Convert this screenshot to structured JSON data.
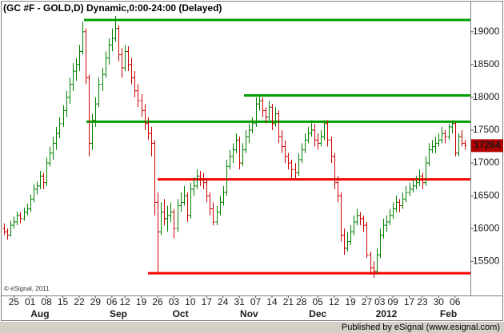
{
  "chart_data": {
    "type": "ohlc",
    "title": "(GC #F - GOLD,D) Dynamic,0:00-24:00 (Delayed)",
    "copyright": "© eSignal, 2011",
    "footer": "Published by eSignal (www.esignal.com)",
    "ylim": [
      14980,
      19460
    ],
    "yticks": [
      15500,
      16000,
      16500,
      17000,
      17500,
      18000,
      18500,
      19000
    ],
    "up_color": "#008000",
    "down_color": "#cc0000",
    "levels": [
      {
        "value": 19180,
        "color": "#00a000"
      },
      {
        "value": 18030,
        "color": "#00a000"
      },
      {
        "value": 17630,
        "color": "#00a000"
      },
      {
        "value": 16750,
        "color": "#ff0000"
      },
      {
        "value": 15320,
        "color": "#ff0000"
      }
    ],
    "categories": [
      null,
      null,
      null,
      "25",
      null,
      null,
      null,
      null,
      "01",
      null,
      null,
      null,
      null,
      "08",
      null,
      null,
      null,
      null,
      "15",
      null,
      null,
      null,
      null,
      "22",
      null,
      null,
      null,
      null,
      "29",
      null,
      null,
      null,
      null,
      "06",
      null,
      null,
      null,
      "12",
      null,
      null,
      null,
      null,
      "19",
      null,
      null,
      null,
      null,
      "26",
      null,
      null,
      null,
      null,
      "03",
      null,
      null,
      null,
      null,
      "10",
      null,
      null,
      null,
      null,
      "17",
      null,
      null,
      null,
      null,
      "24",
      null,
      null,
      null,
      null,
      "31",
      null,
      null,
      null,
      null,
      "07",
      null,
      null,
      null,
      null,
      "14",
      null,
      null,
      null,
      null,
      "21",
      null,
      null,
      null,
      "28",
      null,
      null,
      null,
      null,
      "05",
      null,
      null,
      null,
      null,
      "12",
      null,
      null,
      null,
      null,
      "19",
      null,
      null,
      null,
      null,
      "27",
      null,
      null,
      null,
      "03",
      null,
      null,
      null,
      "09",
      null,
      null,
      null,
      null,
      "17",
      null,
      null,
      null,
      "23",
      null,
      null,
      null,
      null,
      "30",
      null,
      null,
      null,
      null,
      "06",
      null,
      null,
      null
    ],
    "months": [
      null,
      null,
      null,
      null,
      null,
      null,
      null,
      null,
      null,
      null,
      null,
      "Aug",
      null,
      null,
      null,
      null,
      null,
      null,
      null,
      null,
      null,
      null,
      null,
      null,
      null,
      null,
      null,
      null,
      null,
      null,
      null,
      null,
      null,
      null,
      null,
      "Sep",
      null,
      null,
      null,
      null,
      null,
      null,
      null,
      null,
      null,
      null,
      null,
      null,
      null,
      null,
      null,
      null,
      null,
      null,
      "Oct",
      null,
      null,
      null,
      null,
      null,
      null,
      null,
      null,
      null,
      null,
      null,
      null,
      null,
      null,
      null,
      null,
      null,
      null,
      null,
      null,
      "Nov",
      null,
      null,
      null,
      null,
      null,
      null,
      null,
      null,
      null,
      null,
      null,
      null,
      null,
      null,
      null,
      null,
      null,
      null,
      null,
      null,
      "Dec",
      null,
      null,
      null,
      null,
      null,
      null,
      null,
      null,
      null,
      null,
      null,
      null,
      null,
      null,
      null,
      null,
      null,
      null,
      null,
      null,
      "2012",
      null,
      null,
      null,
      null,
      null,
      null,
      null,
      null,
      null,
      null,
      null,
      null,
      null,
      null,
      null,
      null,
      null,
      null,
      "Feb",
      null,
      null,
      null,
      null,
      null
    ],
    "bars": [
      [
        16000,
        16080,
        15900,
        15950
      ],
      [
        15950,
        16000,
        15830,
        15900
      ],
      [
        15900,
        16120,
        15880,
        16050
      ],
      [
        16050,
        16180,
        16000,
        16100
      ],
      [
        16100,
        16260,
        16050,
        16200
      ],
      [
        16200,
        16250,
        16080,
        16150
      ],
      [
        16150,
        16320,
        16120,
        16250
      ],
      [
        16250,
        16380,
        16200,
        16300
      ],
      [
        16300,
        16520,
        16250,
        16450
      ],
      [
        16450,
        16680,
        16400,
        16600
      ],
      [
        16600,
        16720,
        16520,
        16650
      ],
      [
        16650,
        16880,
        16600,
        16800
      ],
      [
        16800,
        16850,
        16600,
        16700
      ],
      [
        16700,
        17080,
        16650,
        17000
      ],
      [
        17000,
        17250,
        16950,
        17150
      ],
      [
        17150,
        17400,
        17050,
        17300
      ],
      [
        17300,
        17550,
        17200,
        17450
      ],
      [
        17450,
        17700,
        17380,
        17600
      ],
      [
        17600,
        17880,
        17550,
        17800
      ],
      [
        17800,
        18100,
        17700,
        18000
      ],
      [
        18000,
        18300,
        17900,
        18200
      ],
      [
        18200,
        18520,
        18100,
        18400
      ],
      [
        18400,
        18600,
        18250,
        18500
      ],
      [
        18500,
        18800,
        18400,
        18700
      ],
      [
        18700,
        19150,
        18650,
        19000
      ],
      [
        19000,
        19050,
        18200,
        18300
      ],
      [
        18300,
        18350,
        17100,
        17300
      ],
      [
        17300,
        17750,
        17200,
        17650
      ],
      [
        17650,
        18000,
        17550,
        17900
      ],
      [
        17900,
        18300,
        17850,
        18200
      ],
      [
        18200,
        18450,
        18100,
        18350
      ],
      [
        18350,
        18700,
        18300,
        18600
      ],
      [
        18600,
        18900,
        18500,
        18800
      ],
      [
        18800,
        19050,
        18700,
        18900
      ],
      [
        18900,
        19240,
        18850,
        19050
      ],
      [
        19050,
        19100,
        18550,
        18650
      ],
      [
        18650,
        18750,
        18300,
        18450
      ],
      [
        18450,
        18800,
        18400,
        18700
      ],
      [
        18700,
        18780,
        18400,
        18500
      ],
      [
        18500,
        18600,
        18200,
        18300
      ],
      [
        18300,
        18400,
        18000,
        18100
      ],
      [
        18100,
        18200,
        17850,
        17950
      ],
      [
        17950,
        18050,
        17700,
        17800
      ],
      [
        17800,
        17900,
        17500,
        17600
      ],
      [
        17600,
        17700,
        17350,
        17450
      ],
      [
        17450,
        17550,
        17100,
        17300
      ],
      [
        17300,
        17350,
        16200,
        16400
      ],
      [
        16400,
        16550,
        15340,
        15950
      ],
      [
        15950,
        16400,
        15900,
        16250
      ],
      [
        16250,
        16450,
        16050,
        16150
      ],
      [
        16150,
        16350,
        15950,
        16200
      ],
      [
        16200,
        16400,
        16100,
        16250
      ],
      [
        16250,
        16300,
        15850,
        16000
      ],
      [
        16000,
        16450,
        15950,
        16350
      ],
      [
        16350,
        16550,
        16250,
        16400
      ],
      [
        16400,
        16650,
        16350,
        16500
      ],
      [
        16500,
        16550,
        16100,
        16200
      ],
      [
        16200,
        16700,
        16150,
        16600
      ],
      [
        16600,
        16780,
        16500,
        16650
      ],
      [
        16650,
        16900,
        16600,
        16800
      ],
      [
        16800,
        16880,
        16650,
        16750
      ],
      [
        16750,
        16850,
        16600,
        16700
      ],
      [
        16700,
        16750,
        16400,
        16500
      ],
      [
        16500,
        16550,
        16200,
        16300
      ],
      [
        16300,
        16400,
        16050,
        16100
      ],
      [
        16100,
        16350,
        16050,
        16250
      ],
      [
        16250,
        16500,
        16200,
        16400
      ],
      [
        16400,
        16650,
        16350,
        16550
      ],
      [
        16550,
        17050,
        16500,
        16950
      ],
      [
        16950,
        17200,
        16900,
        17100
      ],
      [
        17100,
        17300,
        17000,
        17200
      ],
      [
        17200,
        17450,
        17150,
        17350
      ],
      [
        17350,
        17400,
        16900,
        17000
      ],
      [
        17000,
        17300,
        16950,
        17200
      ],
      [
        17200,
        17500,
        17150,
        17400
      ],
      [
        17400,
        17600,
        17300,
        17500
      ],
      [
        17500,
        17700,
        17450,
        17600
      ],
      [
        17600,
        18000,
        17550,
        17900
      ],
      [
        17900,
        18030,
        17800,
        17950
      ],
      [
        17950,
        18000,
        17700,
        17800
      ],
      [
        17800,
        17850,
        17600,
        17700
      ],
      [
        17700,
        17950,
        17650,
        17850
      ],
      [
        17850,
        17900,
        17500,
        17600
      ],
      [
        17600,
        17850,
        17550,
        17750
      ],
      [
        17750,
        17800,
        17300,
        17400
      ],
      [
        17400,
        17500,
        17150,
        17250
      ],
      [
        17250,
        17350,
        17000,
        17100
      ],
      [
        17100,
        17150,
        16900,
        17000
      ],
      [
        17000,
        17050,
        16750,
        16900
      ],
      [
        16900,
        17000,
        16750,
        16850
      ],
      [
        16850,
        17150,
        16800,
        17050
      ],
      [
        17050,
        17300,
        17000,
        17200
      ],
      [
        17200,
        17450,
        17150,
        17350
      ],
      [
        17350,
        17550,
        17300,
        17450
      ],
      [
        17450,
        17650,
        17400,
        17500
      ],
      [
        17500,
        17600,
        17250,
        17350
      ],
      [
        17350,
        17450,
        17200,
        17300
      ],
      [
        17300,
        17500,
        17250,
        17400
      ],
      [
        17400,
        17650,
        17350,
        17600
      ],
      [
        17600,
        17650,
        17250,
        17350
      ],
      [
        17350,
        17400,
        17000,
        17100
      ],
      [
        17100,
        17150,
        16600,
        16700
      ],
      [
        16700,
        16800,
        16400,
        16500
      ],
      [
        16500,
        16550,
        15800,
        15900
      ],
      [
        15900,
        16000,
        15600,
        15700
      ],
      [
        15700,
        15950,
        15650,
        15800
      ],
      [
        15800,
        16050,
        15750,
        15950
      ],
      [
        15950,
        16200,
        15900,
        16100
      ],
      [
        16100,
        16300,
        16050,
        16200
      ],
      [
        16200,
        16250,
        16050,
        16150
      ],
      [
        16150,
        16200,
        15950,
        16050
      ],
      [
        16050,
        16100,
        15550,
        15600
      ],
      [
        15600,
        15650,
        15300,
        15400
      ],
      [
        15400,
        15500,
        15250,
        15350
      ],
      [
        15350,
        15700,
        15300,
        15600
      ],
      [
        15600,
        16000,
        15550,
        15900
      ],
      [
        15900,
        16150,
        15850,
        16050
      ],
      [
        16050,
        16200,
        15950,
        16100
      ],
      [
        16100,
        16300,
        16050,
        16200
      ],
      [
        16200,
        16400,
        16150,
        16300
      ],
      [
        16300,
        16500,
        16250,
        16400
      ],
      [
        16400,
        16450,
        16250,
        16350
      ],
      [
        16350,
        16550,
        16300,
        16450
      ],
      [
        16450,
        16650,
        16400,
        16550
      ],
      [
        16550,
        16700,
        16500,
        16600
      ],
      [
        16600,
        16750,
        16550,
        16650
      ],
      [
        16650,
        16800,
        16600,
        16700
      ],
      [
        16700,
        16900,
        16650,
        16800
      ],
      [
        16800,
        16850,
        16600,
        16700
      ],
      [
        16700,
        17100,
        16650,
        17000
      ],
      [
        17000,
        17300,
        16950,
        17200
      ],
      [
        17200,
        17350,
        17150,
        17250
      ],
      [
        17250,
        17400,
        17150,
        17300
      ],
      [
        17300,
        17450,
        17250,
        17350
      ],
      [
        17350,
        17550,
        17300,
        17450
      ],
      [
        17450,
        17500,
        17300,
        17400
      ],
      [
        17400,
        17600,
        17350,
        17550
      ],
      [
        17550,
        17650,
        17450,
        17600
      ],
      [
        17600,
        17620,
        17100,
        17150
      ],
      [
        17150,
        17450,
        17100,
        17400
      ],
      [
        17400,
        17500,
        17250,
        17300
      ],
      [
        17300,
        17350,
        17200,
        17264
      ]
    ]
  }
}
